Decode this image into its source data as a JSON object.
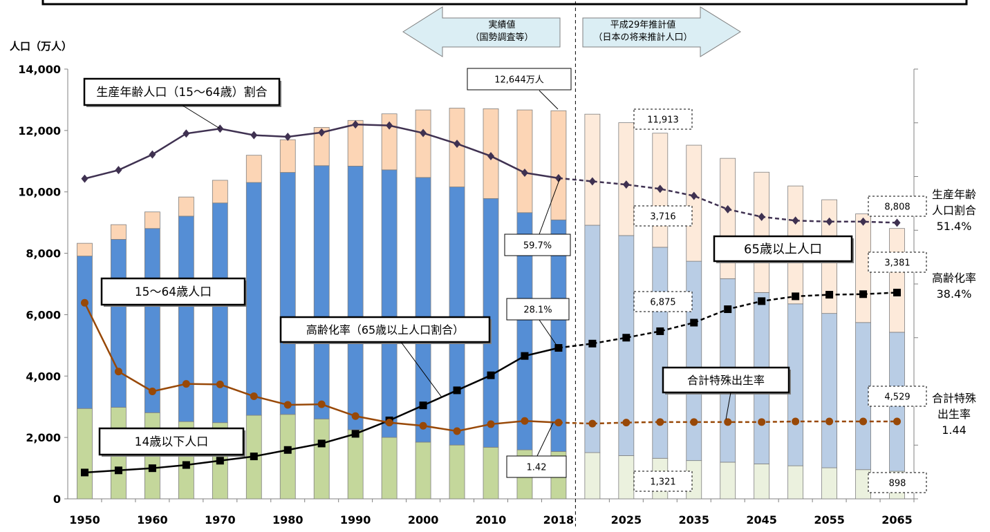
{
  "chart_data": {
    "type": "bar",
    "y_axis_title": "人口（万人）",
    "ylim": [
      0,
      14000
    ],
    "y_ticks": [
      "0",
      "2,000",
      "4,000",
      "6,000",
      "8,000",
      "10,000",
      "12,000",
      "14,000"
    ],
    "x_tick_labels": [
      "1950",
      "1960",
      "1970",
      "1980",
      "1990",
      "2000",
      "2010",
      "2018",
      "2025",
      "2035",
      "2045",
      "2055",
      "2065"
    ],
    "x": [
      1950,
      1955,
      1960,
      1965,
      1970,
      1975,
      1980,
      1985,
      1990,
      1995,
      2000,
      2005,
      2010,
      2015,
      2018,
      2020,
      2025,
      2030,
      2035,
      2040,
      2045,
      2050,
      2055,
      2060,
      2065
    ],
    "projection_start": 2020,
    "series": [
      {
        "name": "14歳以下人口",
        "kind": "bar",
        "values": [
          2943,
          2980,
          2807,
          2517,
          2482,
          2722,
          2751,
          2603,
          2249,
          2001,
          1847,
          1752,
          1680,
          1595,
          1542,
          1507,
          1407,
          1321,
          1246,
          1194,
          1138,
          1077,
          1012,
          951,
          898
        ],
        "colors": {
          "actual": "#c4d79b",
          "projection": "#ebf1de"
        }
      },
      {
        "name": "15〜64歳人口",
        "kind": "bar",
        "values": [
          4966,
          5473,
          6000,
          6692,
          7157,
          7584,
          7883,
          8251,
          8590,
          8716,
          8622,
          8409,
          8103,
          7728,
          7545,
          7406,
          7170,
          6875,
          6494,
          5978,
          5584,
          5275,
          5028,
          4793,
          4529
        ],
        "colors": {
          "actual": "#558ed5",
          "projection": "#b9cde5"
        }
      },
      {
        "name": "65歳以上人口",
        "kind": "bar",
        "values": [
          416,
          479,
          540,
          624,
          739,
          887,
          1065,
          1247,
          1489,
          1826,
          2201,
          2567,
          2925,
          3347,
          3557,
          3619,
          3677,
          3716,
          3782,
          3921,
          3919,
          3841,
          3704,
          3540,
          3381
        ],
        "colors": {
          "actual": "#fcd5b5",
          "projection": "#fdeada"
        }
      },
      {
        "name": "生産年齢人口（15〜64歳）割合",
        "kind": "line",
        "unit": "%",
        "values": [
          59.6,
          61.2,
          64.1,
          68.0,
          68.9,
          67.7,
          67.4,
          68.2,
          69.7,
          69.5,
          68.1,
          66.1,
          63.8,
          60.7,
          59.7,
          59.1,
          58.5,
          57.7,
          56.4,
          53.9,
          52.5,
          51.8,
          51.6,
          51.6,
          51.4
        ],
        "color": "#3f3151"
      },
      {
        "name": "高齢化率（65歳以上人口割合）",
        "kind": "line",
        "unit": "%",
        "values": [
          4.9,
          5.3,
          5.7,
          6.3,
          7.1,
          7.9,
          9.1,
          10.3,
          12.1,
          14.6,
          17.4,
          20.2,
          23.0,
          26.6,
          28.1,
          28.9,
          30.0,
          31.2,
          32.8,
          35.3,
          36.8,
          37.7,
          38.0,
          38.1,
          38.4
        ],
        "color": "#000000"
      },
      {
        "name": "合計特殊出生率",
        "kind": "line",
        "values": [
          3.65,
          2.37,
          2.0,
          2.14,
          2.13,
          1.91,
          1.75,
          1.76,
          1.54,
          1.42,
          1.36,
          1.26,
          1.39,
          1.45,
          1.42,
          1.4,
          1.42,
          1.43,
          1.43,
          1.43,
          1.43,
          1.44,
          1.44,
          1.44,
          1.44
        ],
        "color": "#984807"
      }
    ],
    "header_arrows": {
      "actual": "実績値\n（国勢調査等）",
      "projection": "平成29年推計値\n（日本の将来推計人口）"
    },
    "series_labels": {
      "working_ratio": "生産年齢人口（15〜64歳）割合",
      "working_pop": "15〜64歳人口",
      "aging_rate": "高齢化率（65歳以上人口割合）",
      "child_pop": "14歳以下人口",
      "elderly_pop": "65歳以上人口",
      "fertility": "合計特殊出生率"
    },
    "callouts": {
      "total_2018": "12,644万人",
      "total_2030": "11,913",
      "elderly_2030": "3,716",
      "working_2030": "6,875",
      "child_2030": "1,321",
      "total_2065": "8,808",
      "elderly_2065": "3,381",
      "working_2065": "4,529",
      "child_2065": "898",
      "working_ratio_2018": "59.7%",
      "aging_2018": "28.1%",
      "fertility_2018": "1.42"
    },
    "right_labels": {
      "working_ratio": "生産年齢\n人口割合\n51.4%",
      "aging_rate": "高齢化率\n38.4%",
      "fertility": "合計特殊\n出生率\n1.44"
    }
  }
}
